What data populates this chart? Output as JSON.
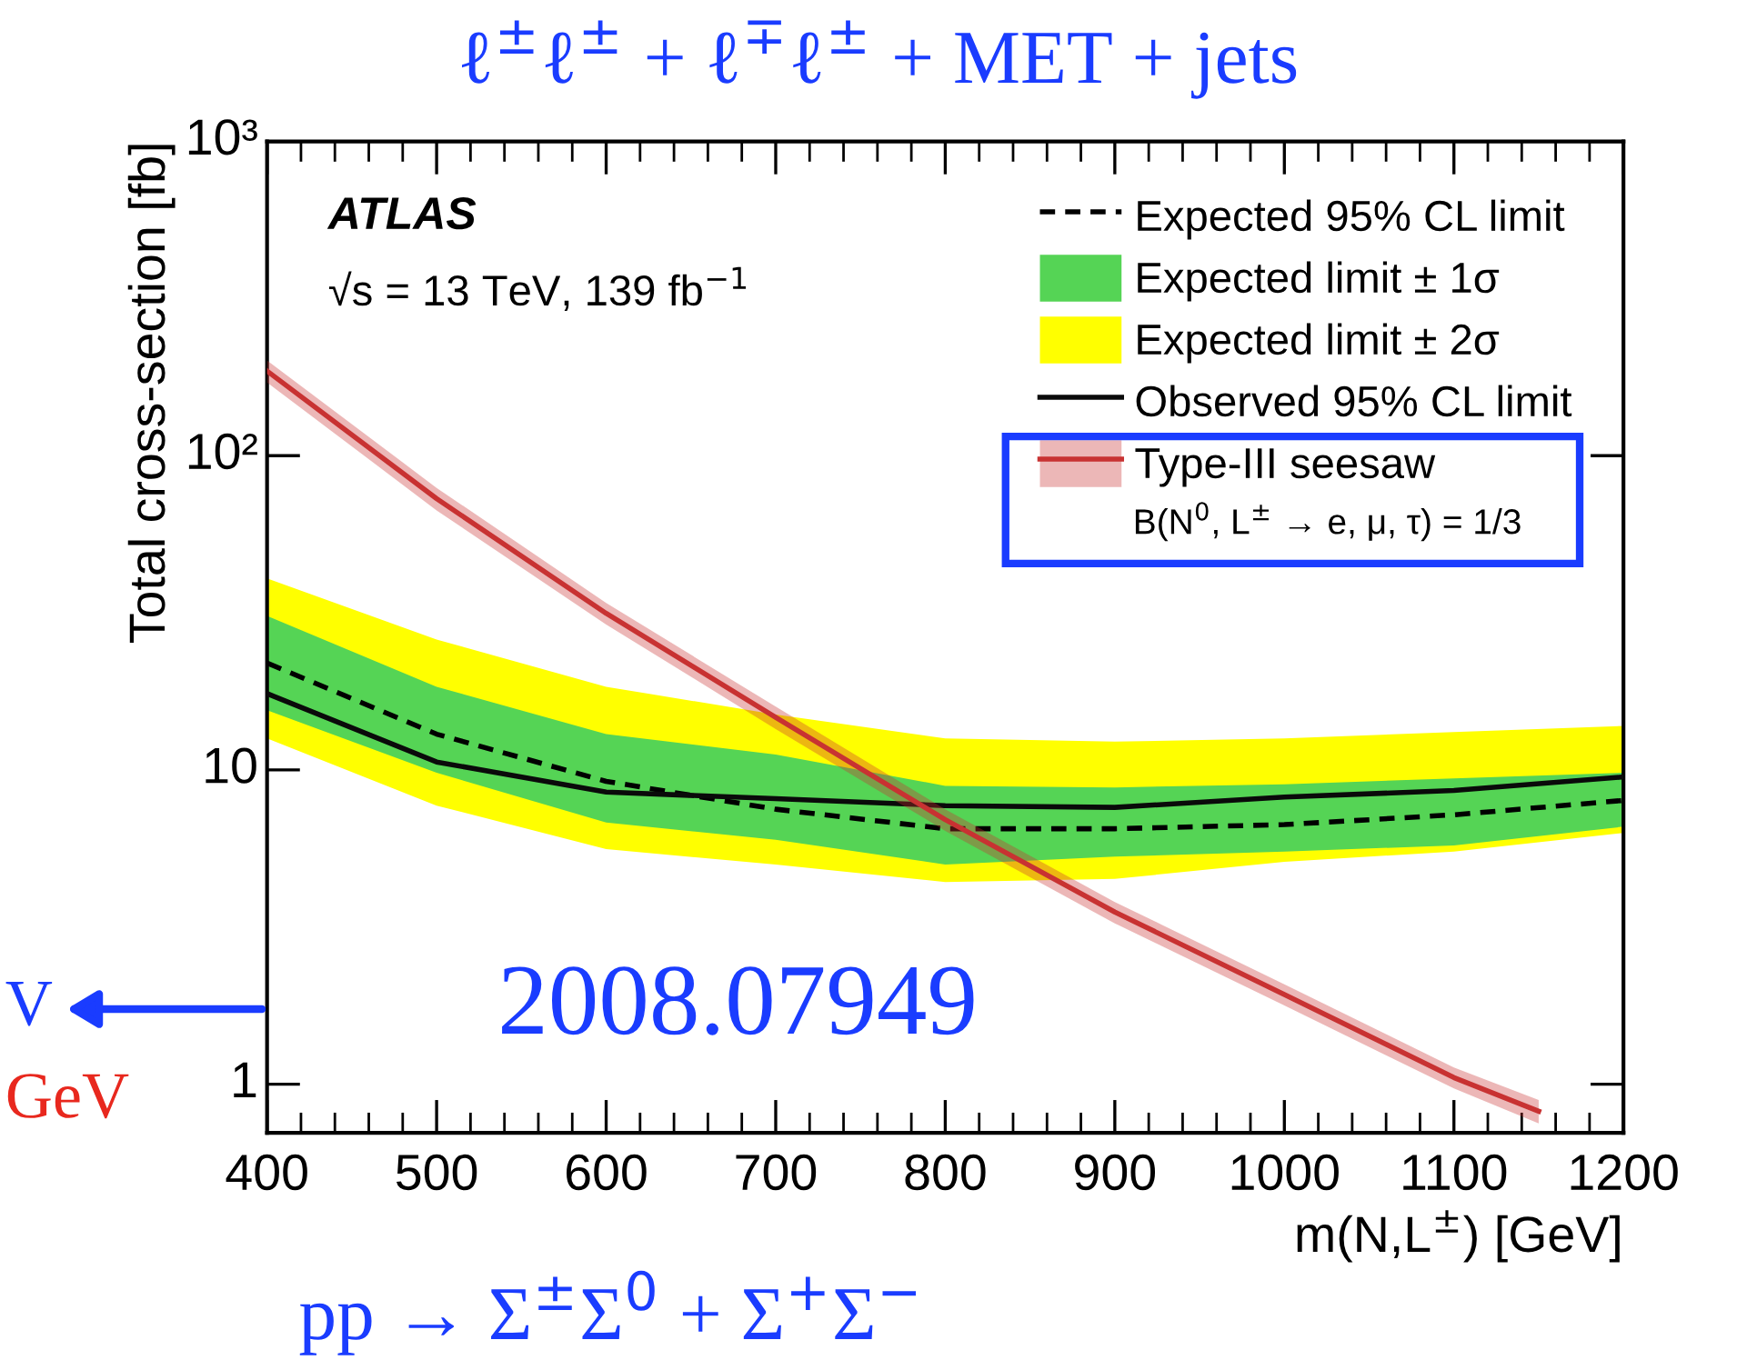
{
  "chart_data": {
    "type": "line",
    "title": "ℓ$^{±}$ℓ$^{±}$ + ℓ$^{∓}$ℓ$^{±}$ + MET + jets",
    "xlabel": "m(N,L$^{±}$) [GeV]",
    "ylabel": "Total cross-section [fb]",
    "xlim": [
      400,
      1200
    ],
    "xticks": [
      400,
      500,
      600,
      700,
      800,
      900,
      1000,
      1100,
      1200
    ],
    "ylim": [
      0.7,
      1000
    ],
    "log": true,
    "yticks": [
      1,
      10,
      {
        "value": 100,
        "label": "10²"
      },
      {
        "value": 1000,
        "label": "10³"
      }
    ],
    "legend": "top right",
    "grid": false,
    "x": [
      400,
      500,
      600,
      700,
      800,
      900,
      1000,
      1100,
      1200
    ],
    "series": [
      {
        "name": "Expected 95% CL limit",
        "color": "#000000",
        "line_style": "dashed",
        "values": [
          21.9,
          13,
          9.2,
          7.5,
          6.5,
          6.5,
          6.7,
          7.2,
          8.0
        ]
      },
      {
        "name": "Expected limit ± 1σ",
        "color": "#55d455",
        "values": [
          null,
          null,
          null,
          null,
          null,
          null,
          null,
          null,
          null
        ],
        "lower": [
          15.5,
          9.8,
          6.8,
          6.0,
          5.0,
          5.3,
          5.5,
          5.75,
          6.6
        ],
        "upper": [
          30.9,
          18.4,
          13,
          11.2,
          8.9,
          8.8,
          9.0,
          9.4,
          9.8
        ]
      },
      {
        "name": "Expected limit ± 2σ",
        "color": "#ffff00",
        "values": [
          null,
          null,
          null,
          null,
          null,
          null,
          null,
          null,
          null
        ],
        "lower": [
          12.6,
          7.7,
          5.6,
          5.0,
          4.4,
          4.5,
          5.1,
          5.5,
          6.3
        ],
        "upper": [
          40.7,
          26,
          18.4,
          15,
          12.6,
          12.3,
          12.6,
          13.2,
          13.8
        ]
      },
      {
        "name": "Observed 95% CL limit",
        "color": "#0a0a0a",
        "line_style": "solid",
        "values": [
          17.5,
          10.6,
          8.5,
          8.1,
          7.7,
          7.6,
          8.2,
          8.6,
          9.5
        ]
      },
      {
        "name": "Type-III seesaw",
        "color": "#c83232",
        "line_style": "solid",
        "x": [
          400,
          500,
          600,
          700,
          800,
          900,
          1000,
          1100,
          1150
        ],
        "values": [
          186,
          73,
          31.5,
          14.7,
          6.95,
          3.53,
          1.93,
          1.05,
          0.82
        ],
        "lower": [
          171,
          67,
          29,
          13.5,
          6.4,
          3.25,
          1.78,
          0.97,
          0.75
        ],
        "upper": [
          201,
          79,
          34,
          15.9,
          7.5,
          3.8,
          2.08,
          1.13,
          0.89
        ]
      }
    ],
    "annotations": [
      "ATLAS",
      "√s = 13 TeV, 139 fb$^{−1}$",
      "B(N$^{0}$, L$^{±}$ → e, μ, τ) = 1/3",
      "2008.07949",
      "pp → Σ$^{±}$Σ$^{0}$ + Σ$^{+}$Σ$^{−}$",
      "V",
      "GeV"
    ]
  }
}
